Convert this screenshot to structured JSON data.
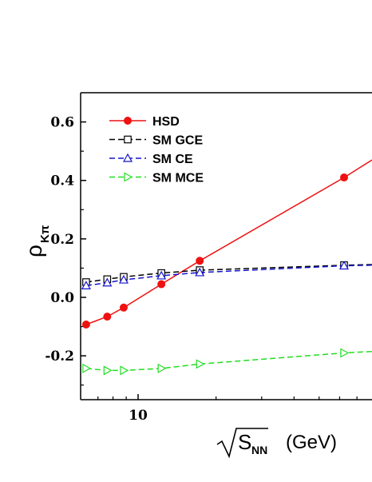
{
  "chart_data": {
    "type": "line",
    "x_scale": "log",
    "xlim": [
      6.0,
      80.0
    ],
    "ylim": [
      -0.35,
      0.7
    ],
    "x_tick_labels": [
      {
        "value": 10,
        "label": "10"
      }
    ],
    "y_ticks": [
      {
        "value": 0.6,
        "label": "0.6"
      },
      {
        "value": 0.4,
        "label": "0.4"
      },
      {
        "value": 0.2,
        "label": "0.2"
      },
      {
        "value": 0.0,
        "label": "0.0"
      },
      {
        "value": -0.2,
        "label": "-0.2"
      }
    ],
    "y_minor_ticks": [
      0.5,
      0.3,
      0.1,
      -0.1,
      -0.3
    ],
    "x_minor_ticks": [
      7,
      8,
      9,
      20,
      30,
      40,
      50,
      60,
      70
    ],
    "ylabel": {
      "main": "ρ",
      "sub": "Kπ"
    },
    "xlabel": {
      "sqrt": "S",
      "sub": "NN",
      "unit": "(GeV)"
    },
    "grid": false,
    "legend_position": "top-left",
    "series": [
      {
        "name": "HSD",
        "color": "#ee1111",
        "dash": "solid",
        "marker": "filled-circle",
        "points": [
          [
            6.3,
            -0.093
          ],
          [
            7.6,
            -0.066
          ],
          [
            8.8,
            -0.035
          ],
          [
            12.3,
            0.045
          ],
          [
            17.3,
            0.125
          ],
          [
            62.4,
            0.41
          ]
        ],
        "line_extension": [
          [
            62.4,
            0.41
          ],
          [
            80.0,
            0.47
          ]
        ]
      },
      {
        "name": "SM GCE",
        "color": "#000000",
        "dash": "7,4",
        "marker": "open-square",
        "points": [
          [
            6.3,
            0.052
          ],
          [
            7.6,
            0.062
          ],
          [
            8.8,
            0.07
          ],
          [
            12.3,
            0.083
          ],
          [
            17.3,
            0.093
          ],
          [
            62.4,
            0.11
          ]
        ],
        "line_extension": [
          [
            62.4,
            0.11
          ],
          [
            80.0,
            0.112
          ]
        ]
      },
      {
        "name": "SM CE",
        "color": "#1515cc",
        "dash": "7,4",
        "marker": "open-triangle-up",
        "points": [
          [
            6.3,
            0.04
          ],
          [
            7.6,
            0.05
          ],
          [
            8.8,
            0.06
          ],
          [
            12.3,
            0.074
          ],
          [
            17.3,
            0.085
          ],
          [
            62.4,
            0.108
          ]
        ],
        "line_extension": [
          [
            62.4,
            0.108
          ],
          [
            80.0,
            0.11
          ]
        ]
      },
      {
        "name": "SM MCE",
        "color": "#22dd22",
        "dash": "7,4",
        "marker": "open-triangle-right",
        "points": [
          [
            6.3,
            -0.243
          ],
          [
            7.6,
            -0.25
          ],
          [
            8.8,
            -0.25
          ],
          [
            12.3,
            -0.243
          ],
          [
            17.3,
            -0.228
          ],
          [
            62.4,
            -0.19
          ]
        ],
        "line_extension": [
          [
            62.4,
            -0.19
          ],
          [
            80.0,
            -0.185
          ]
        ]
      }
    ]
  }
}
